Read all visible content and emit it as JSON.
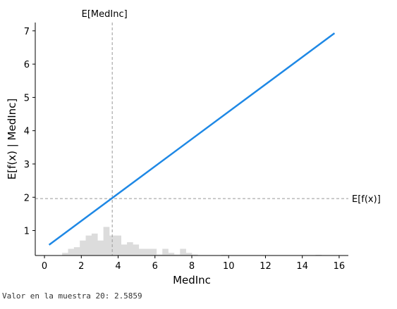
{
  "chart_data": {
    "type": "line",
    "xlabel": "MedInc",
    "ylabel": "E[f(x) | MedInc]",
    "xlim": [
      -0.5,
      16.5
    ],
    "ylim": [
      0.25,
      7.25
    ],
    "xticks": [
      0,
      2,
      4,
      6,
      8,
      10,
      12,
      14,
      16
    ],
    "yticks": [
      1,
      2,
      3,
      4,
      5,
      6,
      7
    ],
    "line_color": "#1e88e5",
    "series": [
      {
        "x": [
          0.25,
          15.75
        ],
        "y": [
          0.57,
          6.93
        ]
      }
    ],
    "reference_lines": {
      "vertical": {
        "x": 3.68,
        "label": "E[MedInc]"
      },
      "horizontal": {
        "y": 1.96,
        "label": "E[f(x)]"
      }
    },
    "histogram": {
      "color": "#dcdcdc",
      "bin_width": 0.32,
      "bins": [
        {
          "x": 0.96,
          "h": 0.08
        },
        {
          "x": 1.28,
          "h": 0.2
        },
        {
          "x": 1.6,
          "h": 0.25
        },
        {
          "x": 1.92,
          "h": 0.45
        },
        {
          "x": 2.24,
          "h": 0.6
        },
        {
          "x": 2.56,
          "h": 0.66
        },
        {
          "x": 2.88,
          "h": 0.45
        },
        {
          "x": 3.2,
          "h": 0.86
        },
        {
          "x": 3.52,
          "h": 0.6
        },
        {
          "x": 3.84,
          "h": 0.6
        },
        {
          "x": 4.16,
          "h": 0.33
        },
        {
          "x": 4.48,
          "h": 0.4
        },
        {
          "x": 4.8,
          "h": 0.33
        },
        {
          "x": 5.12,
          "h": 0.2
        },
        {
          "x": 5.44,
          "h": 0.2
        },
        {
          "x": 5.76,
          "h": 0.2
        },
        {
          "x": 6.08,
          "h": 0.03
        },
        {
          "x": 6.4,
          "h": 0.2
        },
        {
          "x": 6.72,
          "h": 0.08
        },
        {
          "x": 7.04,
          "h": 0.03
        },
        {
          "x": 7.36,
          "h": 0.2
        },
        {
          "x": 7.68,
          "h": 0.08
        },
        {
          "x": 8.0,
          "h": 0.03
        },
        {
          "x": 9.6,
          "h": 0.02
        },
        {
          "x": 14.72,
          "h": 0.02
        }
      ]
    }
  },
  "caption": "Valor en la muestra 20: 2.5859"
}
